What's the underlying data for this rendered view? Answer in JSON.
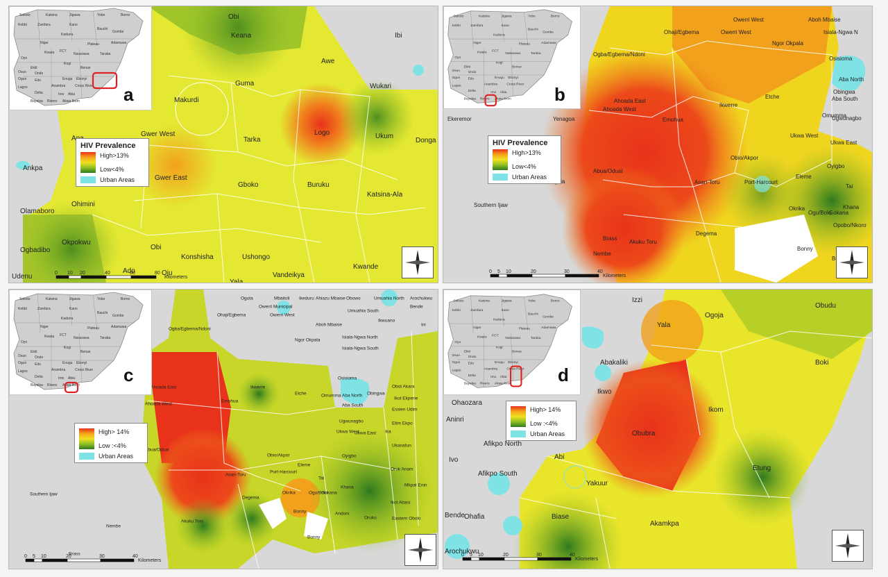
{
  "panels": [
    {
      "id": "a",
      "letter": "a",
      "legend": {
        "title": "HIV Prevalence",
        "high": "High>13%",
        "low": "Low<4%",
        "urban": "Urban Areas"
      },
      "scale": {
        "ticks": [
          "0",
          "10",
          "20",
          "40",
          "60",
          "80"
        ],
        "unit": "Kilometers"
      },
      "labels": [
        "Obi",
        "Keana",
        "Awe",
        "Ibi",
        "Wukari",
        "Guma",
        "Makurdi",
        "Apa",
        "Gwer West",
        "Tarka",
        "Logo",
        "Ukum",
        "Donga",
        "Ankpa",
        "Gwer East",
        "Gboko",
        "Buruku",
        "Katsina-Ala",
        "Olamaboro",
        "Ohimini",
        "Ogbadibo",
        "Okpokwu",
        "Obi",
        "Konshisha",
        "Ushongo",
        "Ado",
        "Oju",
        "Vandeikya",
        "Kwande",
        "Udenu",
        "Nsukka",
        "Yala",
        "Bekwarra"
      ]
    },
    {
      "id": "b",
      "letter": "b",
      "legend": {
        "title": "HIV Prevalence",
        "high": "High>13%",
        "low": "Low<4%",
        "urban": "Urban Areas"
      },
      "scale": {
        "ticks": [
          "0",
          "5",
          "10",
          "20",
          "30",
          "40"
        ],
        "unit": "Kilometers"
      },
      "labels": [
        "Okwa East",
        "Owerri West",
        "Aboh Mbaise",
        "Ohaji/Egbema",
        "Owerri West",
        "Isiala-Ngwa N",
        "Ngor Okpala",
        "Ogba/Egbema/Ndoni",
        "Osisioma",
        "Aba North",
        "Obingwa",
        "Aba South",
        "Ahoada East",
        "Ahoada West",
        "Ikwerre",
        "Etche",
        "Omumma",
        "Ekeremor",
        "Yenagoa",
        "Emohua",
        "Ugwunagbo",
        "Ukwa West",
        "Ukwa East",
        "Abua/Odual",
        "Obio/Akpor",
        "Oyigbo",
        "Ogbia",
        "Port-Harcourt",
        "Eleme",
        "Tai",
        "Asari-Toru",
        "Khana",
        "Southern Ijaw",
        "Degema",
        "Okrika",
        "Ogu/Bolo",
        "Gokana",
        "Brass",
        "Akuku Toru",
        "Opobo/Nkoro",
        "Nembe",
        "Bonny",
        "Bonny"
      ]
    },
    {
      "id": "c",
      "letter": "c",
      "legend": {
        "title": "",
        "high": "High> 14%",
        "low": "Low :<4%",
        "urban": "Urban Areas"
      },
      "scale": {
        "ticks": [
          "0",
          "5",
          "10",
          "20",
          "30",
          "40"
        ],
        "unit": "Kilometers"
      },
      "labels": [
        "Oguta",
        "Mbaitoli",
        "Ikeduru",
        "Ahiazu Mbaise",
        "Obowo",
        "Umuahia North",
        "Arochukwu",
        "Bende",
        "Owerri Municipal",
        "Umuahia South",
        "Ohaji/Egbema",
        "Owerri West",
        "Aboh Mbaise",
        "Ikwuano",
        "Ini",
        "Ogba/Egbema/Ndoni",
        "Isiala-Ngwa North",
        "Ngor Okpala",
        "Isiala-Ngwa South",
        "Ekeremor",
        "Kolokuma/Opokuma",
        "Yenagoa",
        "Ahoada East",
        "Ahoada West",
        "Emohua",
        "Ikwerre",
        "Etche",
        "Omumma",
        "Osisioma",
        "Aba North",
        "Obingwa",
        "Aba South",
        "Obot Akara",
        "Ikot Ekpene",
        "Essien Udim",
        "Etim Ekpo",
        "Ugwunagbo",
        "Ukwa West",
        "Ukwa East",
        "Ika",
        "Ukanafun",
        "Abua/Odual",
        "Obio/Akpor",
        "Oyigbo",
        "Eleme",
        "Oruk Anam",
        "Asari-Toru",
        "Port-Harcourt",
        "Tai",
        "Khana",
        "Mkpat Enin",
        "Southern Ijaw",
        "Degema",
        "Okrika",
        "Ogu/Bolo",
        "Gokana",
        "Ikot Abasi",
        "Nembe",
        "Akuku Toru",
        "Bonny",
        "Andoni",
        "Oruko",
        "Eastern Obolo",
        "Brass",
        "Bonny"
      ]
    },
    {
      "id": "d",
      "letter": "d",
      "legend": {
        "title": "",
        "high": "High> 14%",
        "low": "Low :<4%",
        "urban": "Urban Areas"
      },
      "scale": {
        "ticks": [
          "0",
          "5",
          "10",
          "20",
          "30",
          "40"
        ],
        "unit": "Kilometers"
      },
      "labels": [
        "Izzi",
        "Ogoja",
        "Obudu",
        "Yala",
        "Abakaliki",
        "Boki",
        "Onicha",
        "Ikwo",
        "Ohaozara",
        "Ikom",
        "Aninri",
        "Obubra",
        "Afikpo North",
        "Ivo",
        "Abi",
        "Afikpo South",
        "Etung",
        "Yakuur",
        "Bende",
        "Ohafia",
        "Biase",
        "Akamkpa",
        "Arochukwu"
      ]
    }
  ],
  "inset_states": [
    "Sokoto",
    "Katsina",
    "Jigawa",
    "Yobe",
    "Borno",
    "Kebbi",
    "Zamfara",
    "Kano",
    "Bauchi",
    "Gombe",
    "Kaduna",
    "Niger",
    "Adamawa",
    "Plateau",
    "FCT",
    "Nasarawa",
    "Kwara",
    "Taraba",
    "Oyo",
    "Kogi",
    "Benue",
    "Ekiti",
    "Ondo",
    "Osun",
    "Ogun",
    "Edo",
    "Enugu",
    "Ebonyi",
    "Lagos",
    "Anambra",
    "Cross River",
    "Delta",
    "Imo",
    "Abia",
    "Bayelsa",
    "Rivers",
    "Akwa Ibom"
  ],
  "colors": {
    "high": "#e8321a",
    "mid": "#f0e11f",
    "low": "#2e7a1e",
    "urban": "#7fe3e6",
    "background": "#d8d8d8",
    "highlight": "#e02020"
  }
}
